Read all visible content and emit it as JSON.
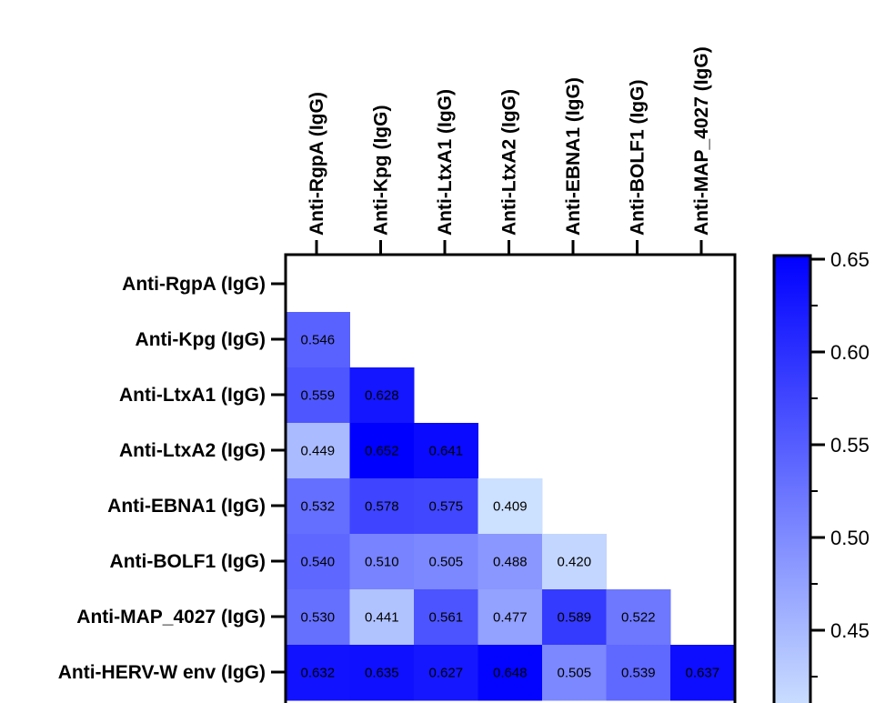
{
  "chart_data": {
    "type": "heatmap",
    "row_labels": [
      "Anti-RgpA (IgG)",
      "Anti-Kpg (IgG)",
      "Anti-LtxA1 (IgG)",
      "Anti-LtxA2 (IgG)",
      "Anti-EBNA1 (IgG)",
      "Anti-BOLF1 (IgG)",
      "Anti-MAP_4027 (IgG)",
      "Anti-HERV-W env (IgG)"
    ],
    "col_labels": [
      "Anti-RgpA (IgG)",
      "Anti-Kpg (IgG)",
      "Anti-LtxA1 (IgG)",
      "Anti-LtxA2 (IgG)",
      "Anti-EBNA1 (IgG)",
      "Anti-BOLF1 (IgG)",
      "Anti-MAP_4027 (IgG)"
    ],
    "values": [
      [],
      [
        "0.546"
      ],
      [
        "0.559",
        "0.628"
      ],
      [
        "0.449",
        "0.652",
        "0.641"
      ],
      [
        "0.532",
        "0.578",
        "0.575",
        "0.409"
      ],
      [
        "0.540",
        "0.510",
        "0.505",
        "0.488",
        "0.420"
      ],
      [
        "0.530",
        "0.441",
        "0.561",
        "0.477",
        "0.589",
        "0.522"
      ],
      [
        "0.632",
        "0.635",
        "0.627",
        "0.648",
        "0.505",
        "0.539",
        "0.637"
      ]
    ],
    "colorbar": {
      "ticks": [
        "0.65",
        "0.60",
        "0.55",
        "0.50",
        "0.45"
      ],
      "tick_values": [
        0.65,
        0.6,
        0.55,
        0.5,
        0.45
      ],
      "min": 0.409,
      "max": 0.652,
      "color_low": "#cce0ff",
      "color_high": "#0000ff"
    }
  }
}
